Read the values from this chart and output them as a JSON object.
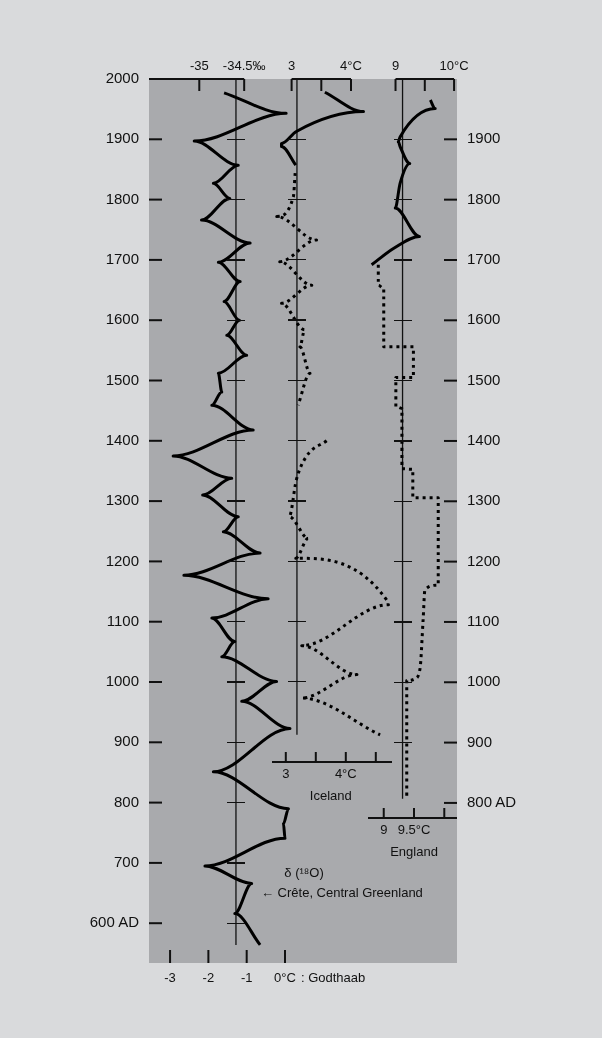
{
  "chart_data": [
    {
      "type": "line",
      "marker": "none",
      "xlim": [
        -3.55,
        4.49
      ],
      "xticks": [
        -3,
        -2,
        -1,
        {
          "value": 0,
          "label": "0°C"
        }
      ],
      "xlabel": ": Godthaab",
      "x2lim": [
        -35.56,
        -32.13
      ],
      "x2ticks": [
        -35,
        {
          "value": -34.5,
          "label": "-34.5‰"
        }
      ],
      "ylim": [
        534,
        2000
      ],
      "yticks": [
        {
          "value": 600,
          "label": "600 AD"
        },
        700,
        800,
        900,
        1000,
        1100,
        1200,
        1300,
        1400,
        1500,
        1600,
        1700,
        1800,
        1900,
        2000
      ],
      "series": [
        {
          "color": "#000000",
          "line_style": "solid",
          "x": [
            -1.59,
            0.03,
            -2.37,
            -1.22,
            -1.87,
            -1.44,
            -2.18,
            -0.91,
            -1.74,
            -1.17,
            -1.59,
            -1.19,
            -1.52,
            -1.0,
            -1.74,
            -1.65,
            -1.91,
            -0.83,
            -2.92,
            -1.39,
            -2.15,
            -1.22,
            -1.61,
            -0.65,
            -2.64,
            -0.44,
            -1.91,
            -1.31,
            -1.65,
            -0.22,
            -1.13,
            0.13,
            -1.87,
            0.09,
            -0.04,
            0.0,
            -2.09,
            -0.87,
            -1.31,
            -0.65
          ],
          "values": [
            1977,
            1943,
            1897,
            1857,
            1827,
            1802,
            1766,
            1728,
            1696,
            1664,
            1631,
            1600,
            1575,
            1542,
            1512,
            1481,
            1459,
            1418,
            1375,
            1338,
            1310,
            1274,
            1249,
            1214,
            1177,
            1138,
            1106,
            1067,
            1042,
            1001,
            968,
            923,
            851,
            790,
            765,
            741,
            695,
            666,
            616,
            564
          ]
        }
      ],
      "ref_lines": [
        {
          "axis": "x",
          "value": -1.28
        }
      ],
      "annotations": [
        "δ (¹⁸O)",
        "← Crête, Central Greenland"
      ]
    },
    {
      "type": "line",
      "marker": "none",
      "tick_labels": "x",
      "xlim": [
        2.77,
        4.77
      ],
      "xticks": [
        3,
        {
          "value": 3.5,
          "label": null
        },
        {
          "value": 4,
          "label": "4°C"
        },
        {
          "value": 4.5,
          "label": null
        }
      ],
      "xlabel": "Iceland",
      "x2lim": [
        2.67,
        4.69
      ],
      "x2ticks": [
        3,
        {
          "value": 3.5,
          "label": null
        },
        {
          "value": 4,
          "label": "4°C"
        }
      ],
      "ylim": [
        867,
        2000
      ],
      "yticks": [
        900,
        1000,
        1100,
        1200,
        1300,
        1400,
        1500,
        1600,
        1700,
        1800,
        1900
      ],
      "series": [
        {
          "color": "#000000",
          "line_style": "solid",
          "axis": "x2",
          "x": [
            3.56,
            4.21,
            3.08,
            2.83,
            2.83,
            3.07
          ],
          "values": [
            1978,
            1946,
            1913,
            1893,
            1888,
            1857
          ]
        },
        {
          "color": "#000000",
          "line_style": "dotted",
          "axis": "x2",
          "x": [
            3.06,
            3.03,
            2.75,
            3.42,
            2.8,
            3.34,
            2.83,
            3.22,
            3.14,
            3.31,
            3.11
          ],
          "values": [
            1844,
            1805,
            1772,
            1733,
            1697,
            1658,
            1628,
            1584,
            1556,
            1512,
            1459
          ]
        },
        {
          "color": "#000000",
          "line_style": "dotted",
          "axis": "x2",
          "x": [
            3.59,
            3.25,
            3.08,
            2.96,
            3.28,
            3.07,
            4.6,
            4.63,
            3.17,
            4.1,
            3.17,
            4.49
          ],
          "values": [
            1400,
            1374,
            1335,
            1274,
            1238,
            1205,
            1136,
            1128,
            1060,
            1012,
            973,
            912
          ]
        }
      ],
      "ref_lines": [
        {
          "axis": "x2",
          "value": 3.09
        }
      ]
    },
    {
      "type": "line",
      "marker": "none",
      "xlim": [
        8.74,
        10.21
      ],
      "xticks": [
        9,
        {
          "value": 9.5,
          "label": "9.5°C"
        },
        {
          "value": 10,
          "label": null
        }
      ],
      "xlabel": "England",
      "x2lim": [
        8.53,
        10.05
      ],
      "x2ticks": [
        9,
        {
          "value": 9.5,
          "label": null
        },
        {
          "value": 10,
          "label": "10°C"
        }
      ],
      "y2lim": [
        775,
        2000
      ],
      "y2ticks": [
        {
          "value": 800,
          "label": "800 AD"
        },
        900,
        1000,
        1100,
        1200,
        1300,
        1400,
        1500,
        1600,
        1700,
        1800,
        1900
      ],
      "series": [
        {
          "color": "#000000",
          "line_style": "solid",
          "axis": "y2",
          "x": [
            9.77,
            9.85,
            9.27,
            9.24,
            9.27,
            9.43,
            9.27,
            9.19,
            9.59,
            9.16,
            8.8
          ],
          "values": [
            1965,
            1951,
            1904,
            1896,
            1888,
            1860,
            1827,
            1786,
            1739,
            1719,
            1692
          ]
        },
        {
          "color": "#000000",
          "line_style": "dotted",
          "axis": "y2",
          "x": [
            8.91,
            8.91,
            9.0,
            9.0,
            9.49,
            9.49,
            9.2,
            9.2,
            9.3,
            9.3,
            9.48,
            9.48,
            9.9,
            9.9,
            9.68,
            9.65,
            9.6,
            9.52,
            9.38,
            9.38
          ],
          "values": [
            1692,
            1658,
            1653,
            1556,
            1556,
            1505,
            1505,
            1457,
            1454,
            1354,
            1353,
            1306,
            1306,
            1161,
            1153,
            1103,
            1023,
            1006,
            1003,
            807
          ]
        }
      ],
      "ref_lines": [
        {
          "axis": "x2",
          "value": 9.12
        }
      ]
    }
  ]
}
